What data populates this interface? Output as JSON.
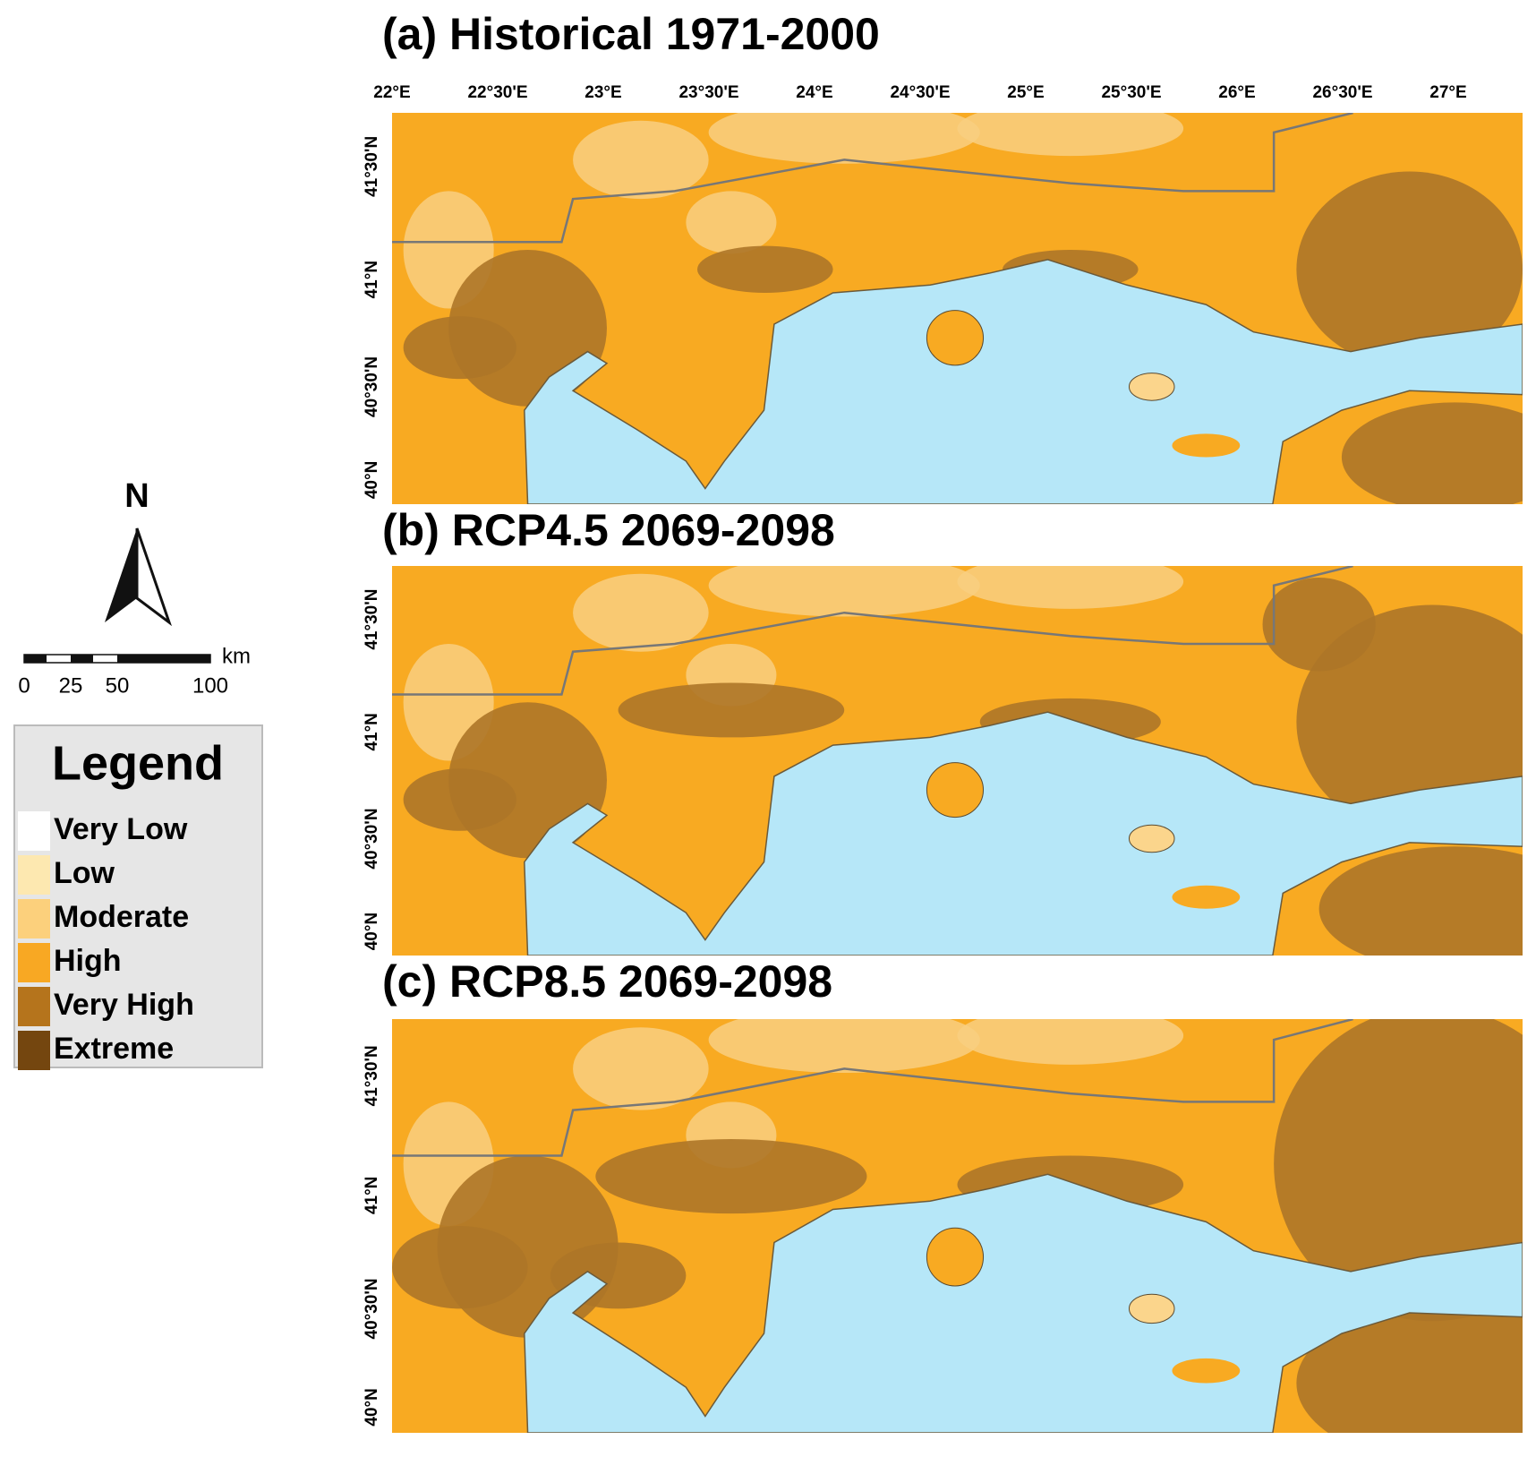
{
  "panels": [
    {
      "title": "(a) Historical 1971-2000"
    },
    {
      "title": "(b) RCP4.5 2069-2098"
    },
    {
      "title": "(c) RCP8.5 2069-2098"
    }
  ],
  "lon_labels": [
    "22°E",
    "22°30'E",
    "23°E",
    "23°30'E",
    "24°E",
    "24°30'E",
    "25°E",
    "25°30'E",
    "26°E",
    "26°30'E",
    "27°E"
  ],
  "lat_labels": [
    "41°30'N",
    "41°N",
    "40°30'N",
    "40°N"
  ],
  "north": "N",
  "scale": {
    "labels": [
      "0",
      "25",
      "50",
      "100"
    ],
    "unit": "km"
  },
  "legend": {
    "title": "Legend",
    "items": [
      {
        "label": "Very Low",
        "color": "#ffffff"
      },
      {
        "label": "Low",
        "color": "#fde8b0"
      },
      {
        "label": "Moderate",
        "color": "#fcd07c"
      },
      {
        "label": "High",
        "color": "#f8a823"
      },
      {
        "label": "Very High",
        "color": "#b5741c"
      },
      {
        "label": "Extreme",
        "color": "#74460f"
      }
    ]
  }
}
